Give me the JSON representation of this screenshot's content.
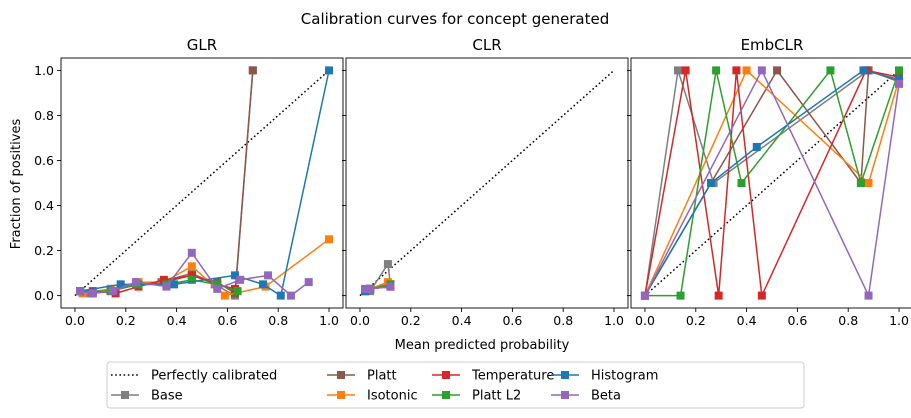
{
  "figure_title": "Calibration curves for concept generated",
  "xlabel": "Mean predicted probability",
  "ylabel": "Fraction of positives",
  "colors": {
    "Perfectly calibrated": "#000000",
    "Base": "#7f7f7f",
    "Platt": "#8c564b",
    "Isotonic": "#ff7f0e",
    "Temperature": "#d62728",
    "Platt L2": "#2ca02c",
    "Histogram": "#1f77b4",
    "Beta": "#9467bd"
  },
  "legend": {
    "location": "bottom-center",
    "columns": 5,
    "items": [
      "Perfectly calibrated",
      "Base",
      "Platt",
      "Isotonic",
      "Temperature",
      "Platt L2",
      "Histogram",
      "Beta"
    ]
  },
  "chart_data": [
    {
      "type": "line",
      "title": "GLR",
      "xlim": [
        0,
        1
      ],
      "ylim": [
        0,
        1
      ],
      "xticks": [
        "0.0",
        "0.2",
        "0.4",
        "0.6",
        "0.8",
        "1.0"
      ],
      "yticks": [
        "0.0",
        "0.2",
        "0.4",
        "0.6",
        "0.8",
        "1.0"
      ],
      "series": [
        {
          "name": "Base",
          "x": [
            0.02,
            0.06,
            0.14,
            0.24,
            0.34,
            0.46,
            0.55,
            0.63,
            0.7
          ],
          "y": [
            0.02,
            0.01,
            0.03,
            0.05,
            0.06,
            0.1,
            0.05,
            0.0,
            1.0
          ]
        },
        {
          "name": "Platt",
          "x": [
            0.02,
            0.07,
            0.14,
            0.25,
            0.35,
            0.46,
            0.56,
            0.63,
            0.7
          ],
          "y": [
            0.02,
            0.01,
            0.02,
            0.05,
            0.06,
            0.09,
            0.06,
            0.01,
            1.0
          ]
        },
        {
          "name": "Isotonic",
          "x": [
            0.03,
            0.14,
            0.25,
            0.35,
            0.46,
            0.59,
            0.75,
            1.0
          ],
          "y": [
            0.01,
            0.03,
            0.06,
            0.06,
            0.13,
            0.0,
            0.04,
            0.25
          ]
        },
        {
          "name": "Temperature",
          "x": [
            0.02,
            0.07,
            0.16,
            0.25,
            0.35,
            0.46,
            0.56,
            0.63
          ],
          "y": [
            0.02,
            0.02,
            0.01,
            0.04,
            0.07,
            0.09,
            0.05,
            0.03
          ]
        },
        {
          "name": "Platt L2",
          "x": [
            0.02,
            0.14,
            0.25,
            0.36,
            0.46,
            0.56,
            0.64
          ],
          "y": [
            0.02,
            0.02,
            0.05,
            0.05,
            0.07,
            0.05,
            0.02
          ]
        },
        {
          "name": "Histogram",
          "x": [
            0.02,
            0.18,
            0.39,
            0.63,
            0.74,
            0.81,
            1.0
          ],
          "y": [
            0.02,
            0.05,
            0.05,
            0.09,
            0.05,
            0.0,
            1.0
          ]
        },
        {
          "name": "Beta",
          "x": [
            0.02,
            0.07,
            0.15,
            0.24,
            0.36,
            0.46,
            0.56,
            0.65,
            0.76,
            0.85,
            0.92
          ],
          "y": [
            0.02,
            0.01,
            0.02,
            0.06,
            0.04,
            0.19,
            0.03,
            0.07,
            0.09,
            0.0,
            0.06
          ]
        }
      ]
    },
    {
      "type": "line",
      "title": "CLR",
      "xlim": [
        0,
        1
      ],
      "ylim": [
        0,
        1
      ],
      "xticks": [
        "0.0",
        "0.2",
        "0.4",
        "0.6",
        "0.8",
        "1.0"
      ],
      "yticks": [],
      "series": [
        {
          "name": "Base",
          "x": [
            0.02,
            0.04,
            0.11,
            0.12
          ],
          "y": [
            0.02,
            0.02,
            0.14,
            0.05
          ]
        },
        {
          "name": "Platt",
          "x": [
            0.02,
            0.04,
            0.11,
            0.12
          ],
          "y": [
            0.02,
            0.03,
            0.05,
            0.05
          ]
        },
        {
          "name": "Isotonic",
          "x": [
            0.02,
            0.04,
            0.11,
            0.12
          ],
          "y": [
            0.02,
            0.03,
            0.06,
            0.05
          ]
        },
        {
          "name": "Temperature",
          "x": [
            0.02,
            0.04,
            0.12
          ],
          "y": [
            0.02,
            0.03,
            0.04
          ]
        },
        {
          "name": "Platt L2",
          "x": [
            0.02,
            0.04,
            0.12
          ],
          "y": [
            0.02,
            0.03,
            0.05
          ]
        },
        {
          "name": "Histogram",
          "x": [
            0.02,
            0.04,
            0.12
          ],
          "y": [
            0.02,
            0.03,
            0.04
          ]
        },
        {
          "name": "Beta",
          "x": [
            0.02,
            0.04,
            0.12
          ],
          "y": [
            0.03,
            0.03,
            0.04
          ]
        }
      ]
    },
    {
      "type": "line",
      "title": "EmbCLR",
      "xlim": [
        0,
        1
      ],
      "ylim": [
        0,
        1
      ],
      "xticks": [
        "0.0",
        "0.2",
        "0.4",
        "0.6",
        "0.8",
        "1.0"
      ],
      "yticks": [],
      "series": [
        {
          "name": "Base",
          "x": [
            0.0,
            0.13,
            0.27,
            0.88,
            1.0
          ],
          "y": [
            0.0,
            1.0,
            0.5,
            1.0,
            0.95
          ]
        },
        {
          "name": "Platt",
          "x": [
            0.0,
            0.52,
            0.85,
            0.88,
            1.0
          ],
          "y": [
            0.0,
            1.0,
            0.5,
            1.0,
            0.95
          ]
        },
        {
          "name": "Isotonic",
          "x": [
            0.0,
            0.4,
            0.88,
            1.0
          ],
          "y": [
            0.0,
            1.0,
            0.5,
            0.96
          ]
        },
        {
          "name": "Temperature",
          "x": [
            0.0,
            0.16,
            0.29,
            0.36,
            0.46,
            0.87,
            1.0
          ],
          "y": [
            0.0,
            1.0,
            0.0,
            1.0,
            0.0,
            1.0,
            0.97
          ]
        },
        {
          "name": "Platt L2",
          "x": [
            0.0,
            0.14,
            0.28,
            0.38,
            0.73,
            0.85,
            1.0
          ],
          "y": [
            0.0,
            0.0,
            1.0,
            0.5,
            1.0,
            0.5,
            1.0
          ]
        },
        {
          "name": "Histogram",
          "x": [
            0.0,
            0.26,
            0.44,
            0.86,
            1.0
          ],
          "y": [
            0.0,
            0.5,
            0.66,
            1.0,
            0.96
          ]
        },
        {
          "name": "Beta",
          "x": [
            0.0,
            0.46,
            0.88,
            1.0
          ],
          "y": [
            0.0,
            1.0,
            0.0,
            0.94
          ]
        }
      ]
    }
  ]
}
